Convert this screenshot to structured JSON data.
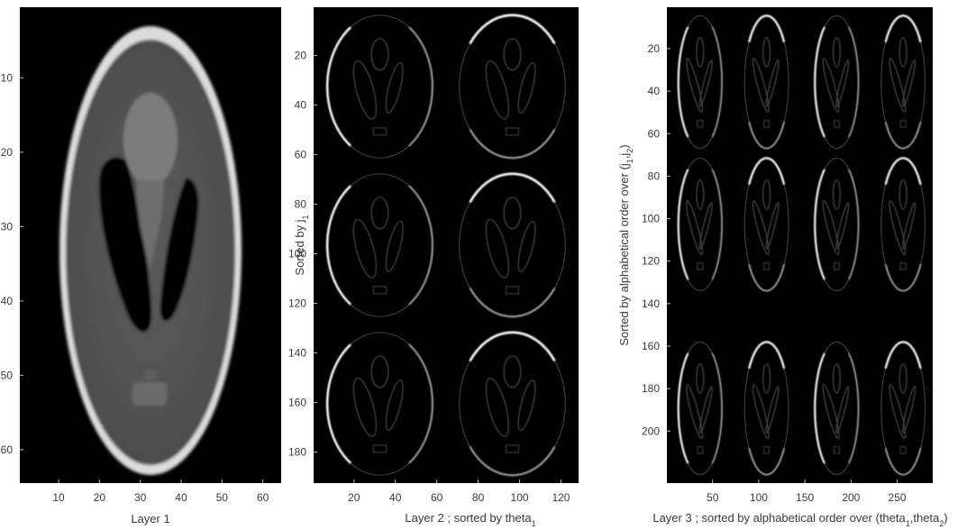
{
  "chart_data": [
    {
      "type": "heatmap",
      "colormap": "gray",
      "background": "#000000",
      "xlabel": "Layer 1",
      "ylabel": "",
      "xlim": [
        0.5,
        64.5
      ],
      "ylim": [
        0.5,
        64.5
      ],
      "xticks": [
        10,
        20,
        30,
        40,
        50,
        60
      ],
      "yticks": [
        10,
        20,
        30,
        40,
        50,
        60
      ],
      "y_reversed": true,
      "grid": false
    },
    {
      "type": "heatmap",
      "colormap": "gray",
      "background": "#000000",
      "xlabel": "Layer 2 ; sorted by theta",
      "xlabel_sub": "1",
      "ylabel": "Sorted by j",
      "ylabel_sub": "1",
      "xlim": [
        0.5,
        128.5
      ],
      "ylim": [
        0.5,
        192.5
      ],
      "xticks": [
        20,
        40,
        60,
        80,
        100,
        120
      ],
      "yticks": [
        20,
        40,
        60,
        80,
        100,
        120,
        140,
        160,
        180
      ],
      "y_reversed": true,
      "grid": false,
      "tiles": {
        "columns": 2,
        "rows": 3
      }
    },
    {
      "type": "heatmap",
      "colormap": "gray",
      "background": "#000000",
      "xlabel": "Layer 3 ; sorted by alphabetical order over (theta",
      "xlabel_sub": [
        "1",
        "2"
      ],
      "ylabel": "Sorted by alphabetical order over (j",
      "ylabel_sub": [
        "1",
        "2"
      ],
      "xlim": [
        0.5,
        288.5
      ],
      "ylim": [
        0.5,
        224.5
      ],
      "xticks": [
        50,
        100,
        150,
        200,
        250
      ],
      "yticks": [
        20,
        40,
        60,
        80,
        100,
        120,
        140,
        160,
        180,
        200
      ],
      "y_reversed": true,
      "grid": false,
      "tiles": {
        "columns": 4,
        "rows": 3,
        "empty_row_after": 2
      }
    }
  ]
}
